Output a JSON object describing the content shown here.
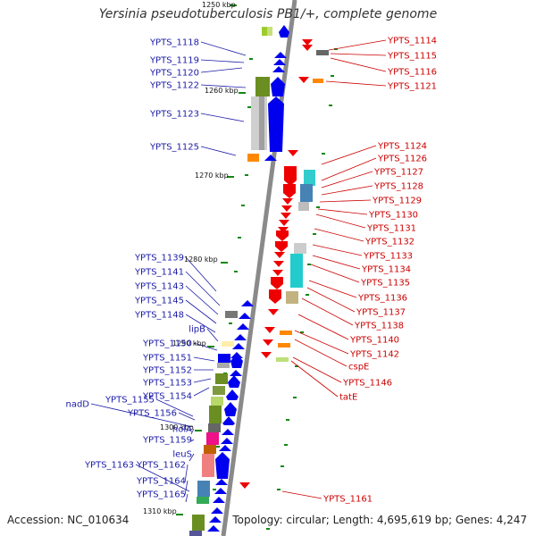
{
  "title": "Yersinia pseudotuberculosis PB1/+, complete genome",
  "accession": "Accession: NC_010634",
  "topology": "Topology: circular; Length: 4,695,619 bp; Genes: 4,247",
  "colors": {
    "left_label": "#1a1aa8",
    "right_label": "#cc0000",
    "backbone": "#8a8a8a",
    "forward_arrow": "#0000ee",
    "reverse_arrow": "#ee0000",
    "tick": "#118811"
  },
  "scale_marks": [
    {
      "label": "1250 kbp"
    },
    {
      "label": "1260 kbp"
    },
    {
      "label": "1270 kbp"
    },
    {
      "label": "1280 kbp"
    },
    {
      "label": "1290 kbp"
    },
    {
      "label": "1300 kbp"
    },
    {
      "label": "1310 kbp"
    }
  ],
  "left_labels": [
    {
      "text": "YPTS_1118"
    },
    {
      "text": "YPTS_1119"
    },
    {
      "text": "YPTS_1120"
    },
    {
      "text": "YPTS_1122"
    },
    {
      "text": "YPTS_1123"
    },
    {
      "text": "YPTS_1125"
    },
    {
      "text": "YPTS_1139"
    },
    {
      "text": "YPTS_1141"
    },
    {
      "text": "YPTS_1143"
    },
    {
      "text": "YPTS_1145"
    },
    {
      "text": "YPTS_1148"
    },
    {
      "text": "lipB"
    },
    {
      "text": "YPTS_1150"
    },
    {
      "text": "YPTS_1151"
    },
    {
      "text": "YPTS_1152"
    },
    {
      "text": "YPTS_1153"
    },
    {
      "text": "YPTS_1154"
    },
    {
      "text": "YPTS_1155"
    },
    {
      "text": "nadD"
    },
    {
      "text": "YPTS_1156"
    },
    {
      "text": "holA"
    },
    {
      "text": "YPTS_1159"
    },
    {
      "text": "leuS"
    },
    {
      "text": "YPTS_1162"
    },
    {
      "text": "YPTS_1163"
    },
    {
      "text": "YPTS_1164"
    },
    {
      "text": "YPTS_1165"
    }
  ],
  "right_labels": [
    {
      "text": "YPTS_1114"
    },
    {
      "text": "YPTS_1115"
    },
    {
      "text": "YPTS_1116"
    },
    {
      "text": "YPTS_1121"
    },
    {
      "text": "YPTS_1124"
    },
    {
      "text": "YPTS_1126"
    },
    {
      "text": "YPTS_1127"
    },
    {
      "text": "YPTS_1128"
    },
    {
      "text": "YPTS_1129"
    },
    {
      "text": "YPTS_1130"
    },
    {
      "text": "YPTS_1131"
    },
    {
      "text": "YPTS_1132"
    },
    {
      "text": "YPTS_1133"
    },
    {
      "text": "YPTS_1134"
    },
    {
      "text": "YPTS_1135"
    },
    {
      "text": "YPTS_1136"
    },
    {
      "text": "YPTS_1137"
    },
    {
      "text": "YPTS_1138"
    },
    {
      "text": "YPTS_1140"
    },
    {
      "text": "YPTS_1142"
    },
    {
      "text": "cspE"
    },
    {
      "text": "YPTS_1146"
    },
    {
      "text": "tatE"
    },
    {
      "text": "YPTS_1161"
    }
  ]
}
